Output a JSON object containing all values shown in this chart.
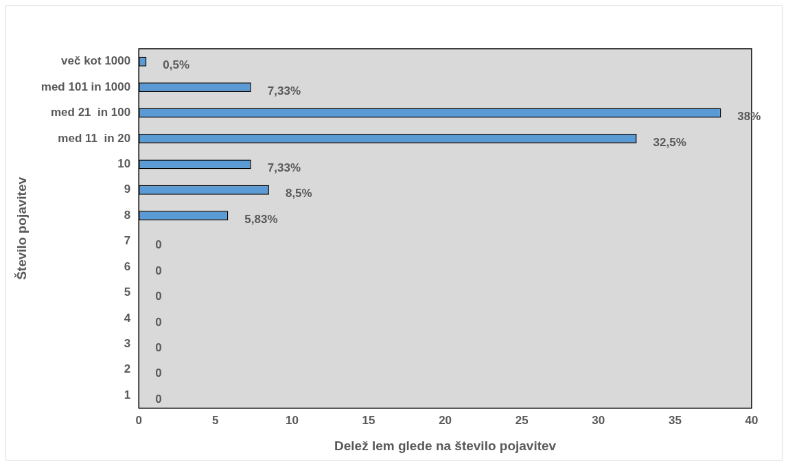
{
  "chart_data": {
    "type": "bar",
    "orientation": "horizontal",
    "xlabel": "Delež lem glede na število pojavitev",
    "ylabel": "Število pojavitev",
    "categories": [
      "več kot 1000",
      "med 101 in 1000",
      "med 21  in 100",
      "med 11  in 20",
      "10",
      "9",
      "8",
      "7",
      "6",
      "5",
      "4",
      "3",
      "2",
      "1"
    ],
    "values": [
      0.5,
      7.33,
      38,
      32.5,
      7.33,
      8.5,
      5.83,
      0,
      0,
      0,
      0,
      0,
      0,
      0
    ],
    "value_labels": [
      "0,5%",
      "7,33%",
      "38%",
      "32,5%",
      "7,33%",
      "8,5%",
      "5,83%",
      "0",
      "0",
      "0",
      "0",
      "0",
      "0",
      "0"
    ],
    "color": "#5b9bd5",
    "xlim": [
      0,
      40
    ],
    "xticks": [
      0,
      5,
      10,
      15,
      20,
      25,
      30,
      35,
      40
    ],
    "grid": false,
    "legend": false
  }
}
